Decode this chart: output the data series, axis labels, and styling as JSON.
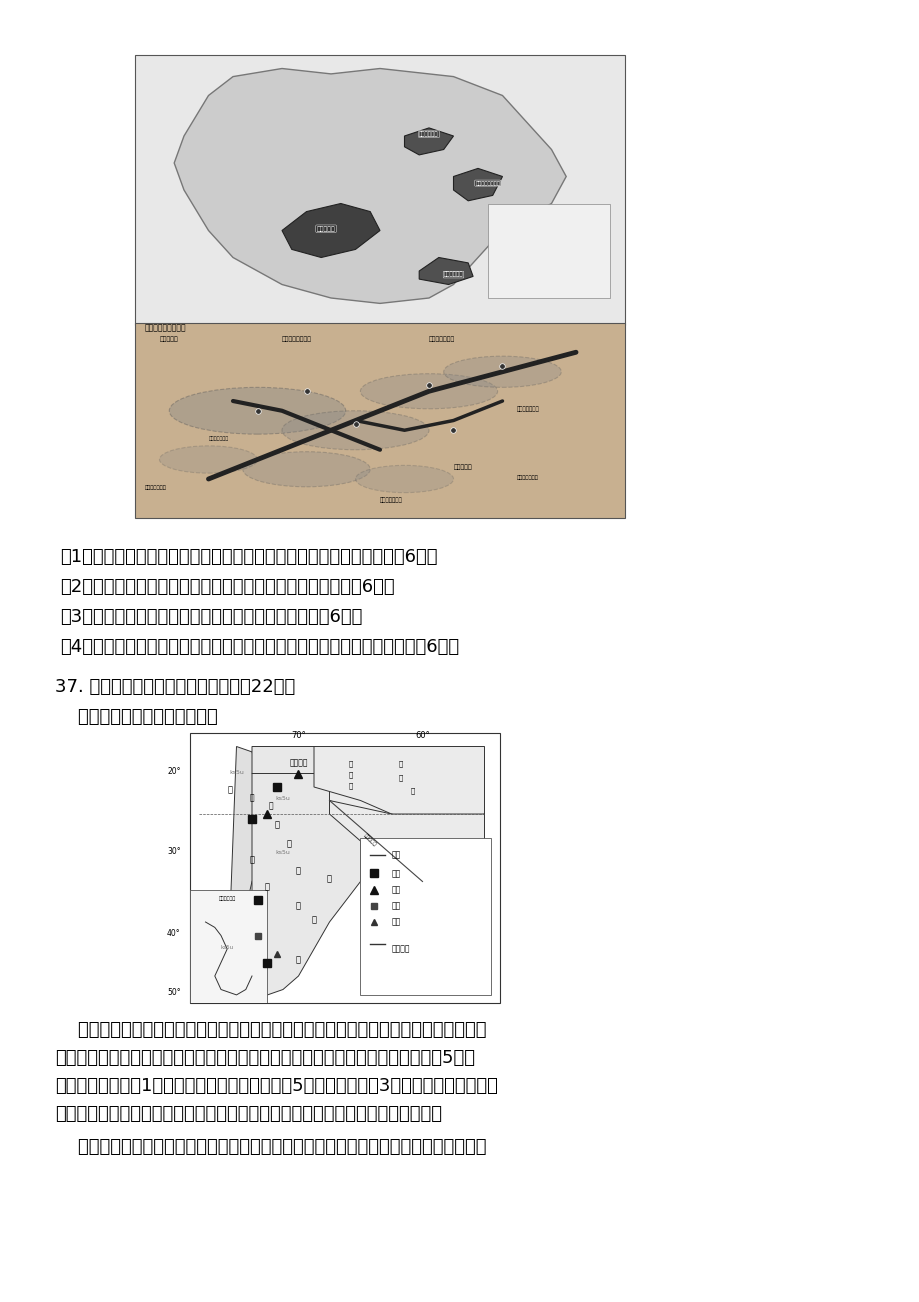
{
  "bg_color": "#ffffff",
  "page_width": 9.2,
  "page_height": 13.02,
  "text_color": "#000000",
  "questions": [
    "（1）分析成渝城市群发展为中国第四大城市群的主要社会经济优势。（6分）",
    "（2）概括成渝城市群范围内不同等级城市的空间分布特征。（6分）",
    "（3）分析山城重庆发展为一座特大城市的自然条件。（6分）",
    "（4）根据材料，提出重庆和成都两个核心城市在未来合作中的注意事项。（6分）"
  ],
  "q37_header": "37. 阅读图文材料，完成下列要求。（22分）",
  "q37_material1": "    材料一：南美洲部分区域图。",
  "material2_lines": [
    "    材料二：智利金属矿产资源丰富，是世界上铜矿储量最丰富、产量最大、出口最多的国",
    "家，被誉为铜矿之国。铜工业是智利国民经济的重要支柱，据统计，智利人每创造5美元",
    "国内生产总值。有1美元与铜矿相关；智利每出口5美元商品，其中3美元是铜产品。但是，",
    "智利煤、石油、天然气等化石能源短缺，国内电力主要依靠进口化石能源作燃料。"
  ],
  "material3_line": "    材料三：巴拉那河、乌拉圭河上中游河道险滩、急流瀑布密集，河水含沙量大，汇合后",
  "font_size_body": 13.5
}
